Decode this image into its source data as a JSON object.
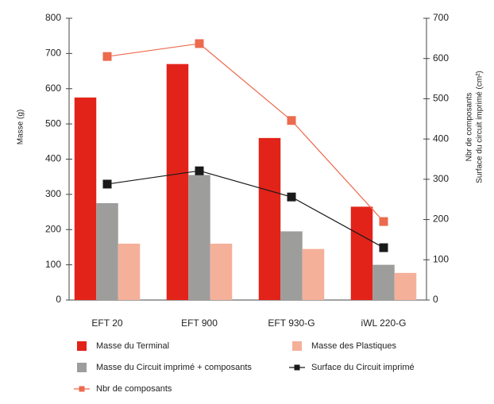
{
  "chart_data": {
    "type": "bar",
    "categories": [
      "EFT 20",
      "EFT 900",
      "EFT 930-G",
      "iWL 220-G"
    ],
    "ylabel": "Masse (g)",
    "y2label": [
      "Nbr de composants",
      "Surface du circuit imprimé (cm²)"
    ],
    "ylim": [
      0,
      800
    ],
    "yticks": [
      0,
      100,
      200,
      300,
      400,
      500,
      600,
      700,
      800
    ],
    "y2lim": [
      0,
      700
    ],
    "y2ticks": [
      0,
      100,
      200,
      300,
      400,
      500,
      600,
      700
    ],
    "series": [
      {
        "name": "Masse du Terminal",
        "type": "bar",
        "color": "#e2231a",
        "values": [
          575,
          670,
          460,
          265
        ]
      },
      {
        "name": "Masse du Circuit imprimé + composants",
        "type": "bar",
        "color": "#9d9d9c",
        "values": [
          275,
          355,
          195,
          100
        ]
      },
      {
        "name": "Masse des Plastiques",
        "type": "bar",
        "color": "#f5b09a",
        "values": [
          160,
          160,
          145,
          77
        ]
      },
      {
        "name": "Surface du Circuit imprimé",
        "type": "line",
        "axis": "y2",
        "color": "#1a1a1a",
        "values": [
          288,
          321,
          256,
          130
        ]
      },
      {
        "name": "Nbr de composants",
        "type": "line",
        "axis": "y2",
        "color": "#ec6a4d",
        "values": [
          605,
          637,
          446,
          195
        ]
      }
    ]
  }
}
